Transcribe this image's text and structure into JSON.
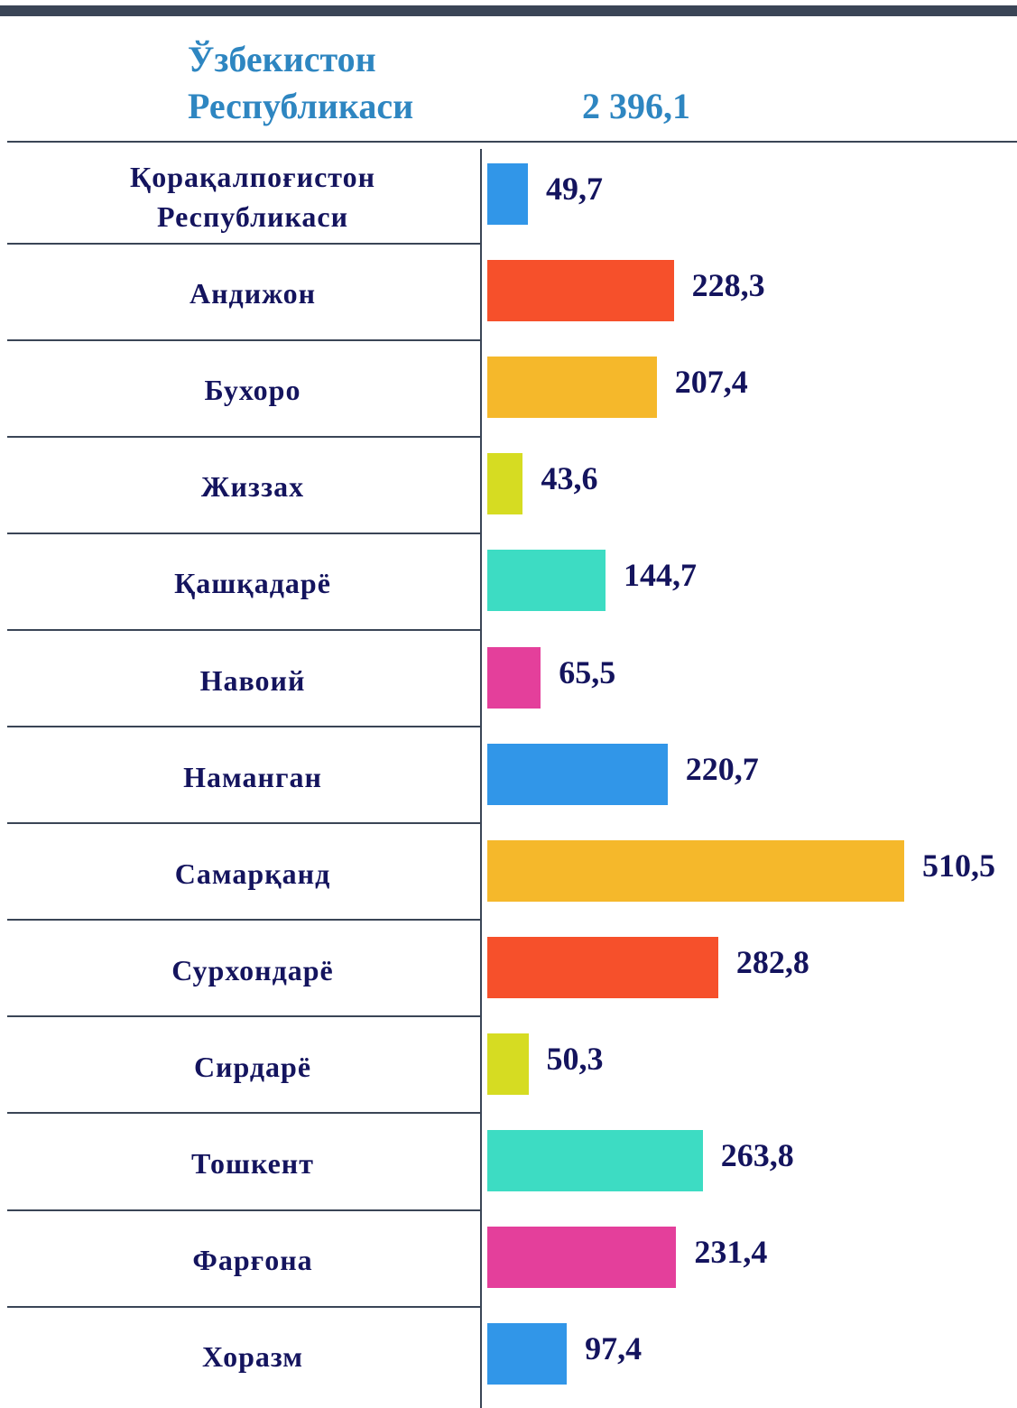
{
  "chart_data": {
    "type": "bar",
    "title": "Ўзбекистон Республикаси",
    "total": 2396.1,
    "total_label": "2 396,1",
    "categories": [
      "Қорақалпоғистон Республикаси",
      "Андижон",
      "Бухоро",
      "Жиззах",
      "Қашқадарё",
      "Навоий",
      "Наманган",
      "Самарқанд",
      "Сурхондарё",
      "Сирдарё",
      "Тошкент",
      "Фарғона",
      "Хоразм"
    ],
    "values": [
      49.7,
      228.3,
      207.4,
      43.6,
      144.7,
      65.5,
      220.7,
      510.5,
      282.8,
      50.3,
      263.8,
      231.4,
      97.4
    ],
    "value_labels": [
      "49,7",
      "228,3",
      "207,4",
      "43,6",
      "144,7",
      "65,5",
      "220,7",
      "510,5",
      "282,8",
      "50,3",
      "263,8",
      "231,4",
      "97,4"
    ],
    "colors": [
      "#3196e8",
      "#f6502b",
      "#f5b82b",
      "#d6dc22",
      "#3ddcc3",
      "#e43f9b",
      "#3196e8",
      "#f5b82b",
      "#f6502b",
      "#d6dc22",
      "#3ddcc3",
      "#e43f9b",
      "#3196e8"
    ]
  }
}
